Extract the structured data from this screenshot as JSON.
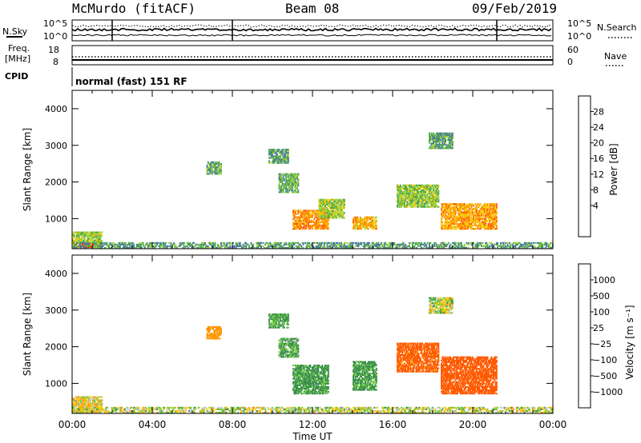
{
  "header": {
    "station": "McMurdo (fitACF)",
    "beam": "Beam 08",
    "date": "09/Feb/2019"
  },
  "strips": {
    "noise": {
      "left_label": "N.Sky",
      "right_label": "N.Search",
      "left_ticks": [
        "10^5",
        "10^0"
      ],
      "right_ticks": [
        "10^5",
        "10^0"
      ]
    },
    "freq": {
      "left_label_1": "Freq.",
      "left_label_2": "[MHz]",
      "right_label": "Nave",
      "left_ticks": [
        "18",
        "8"
      ],
      "right_ticks": [
        "60",
        "0"
      ]
    },
    "cpid": {
      "label": "CPID",
      "text": "normal (fast) 151 RF"
    }
  },
  "chart_data": [
    {
      "type": "heatmap",
      "panel": "power",
      "ylabel": "Slant Range [km]",
      "ylim": [
        180,
        4500
      ],
      "yticks": [
        "1000",
        "2000",
        "3000",
        "4000"
      ],
      "xlim": [
        0,
        24
      ],
      "colorbar": {
        "label": "Power [dB]",
        "ticks": [
          "28",
          "24",
          "20",
          "16",
          "12",
          "8",
          "4"
        ],
        "colors": [
          "#ff0000",
          "#ff5a00",
          "#ff9600",
          "#f5c800",
          "#9ad13a",
          "#4aa84a",
          "#4a78a0",
          "#2a3fc0",
          "#0000ff"
        ]
      },
      "echo_regions": [
        {
          "t": [
            0.0,
            1.5
          ],
          "r": [
            200,
            650
          ],
          "v": 14
        },
        {
          "t": [
            0.3,
            1.1
          ],
          "r": [
            200,
            300
          ],
          "v": 26
        },
        {
          "t": [
            6.7,
            7.4
          ],
          "r": [
            2200,
            2550
          ],
          "v": 10
        },
        {
          "t": [
            9.8,
            10.8
          ],
          "r": [
            2500,
            2900
          ],
          "v": 9
        },
        {
          "t": [
            10.3,
            11.3
          ],
          "r": [
            1700,
            2200
          ],
          "v": 11
        },
        {
          "t": [
            11.0,
            12.8
          ],
          "r": [
            700,
            1200
          ],
          "v": 22
        },
        {
          "t": [
            12.3,
            13.6
          ],
          "r": [
            1000,
            1500
          ],
          "v": 14
        },
        {
          "t": [
            14.0,
            15.2
          ],
          "r": [
            700,
            1050
          ],
          "v": 20
        },
        {
          "t": [
            16.2,
            18.3
          ],
          "r": [
            1300,
            1900
          ],
          "v": 13
        },
        {
          "t": [
            18.4,
            21.2
          ],
          "r": [
            700,
            1400
          ],
          "v": 21
        },
        {
          "t": [
            17.8,
            19.0
          ],
          "r": [
            2900,
            3350
          ],
          "v": 10
        },
        {
          "t": [
            0.0,
            24.0
          ],
          "r": [
            180,
            320
          ],
          "v": 9
        }
      ]
    },
    {
      "type": "heatmap",
      "panel": "velocity",
      "ylabel": "Slant Range [km]",
      "ylim": [
        180,
        4500
      ],
      "yticks": [
        "1000",
        "2000",
        "3000",
        "4000"
      ],
      "xlim": [
        0,
        24
      ],
      "xticks": [
        "00:00",
        "04:00",
        "08:00",
        "12:00",
        "16:00",
        "20:00",
        "00:00"
      ],
      "xlabel": "Time UT",
      "colorbar": {
        "label": "Velocity [m s⁻¹]",
        "ticks": [
          "1000",
          "500",
          "100",
          "25",
          "−25",
          "−100",
          "−500",
          "−1000"
        ],
        "colors": [
          "#1535b0",
          "#2e6ec8",
          "#3a8f4a",
          "#6ccc3a",
          "#c8c8c8",
          "#f5c800",
          "#ff9600",
          "#ff5a00",
          "#ff0000"
        ]
      },
      "echo_regions": [
        {
          "t": [
            0.0,
            1.5
          ],
          "r": [
            200,
            650
          ],
          "v": -50
        },
        {
          "t": [
            6.7,
            7.4
          ],
          "r": [
            2200,
            2550
          ],
          "v": -300
        },
        {
          "t": [
            9.8,
            10.8
          ],
          "r": [
            2500,
            2900
          ],
          "v": 150
        },
        {
          "t": [
            10.3,
            11.3
          ],
          "r": [
            1700,
            2200
          ],
          "v": 120
        },
        {
          "t": [
            11.0,
            12.8
          ],
          "r": [
            700,
            1500
          ],
          "v": 180
        },
        {
          "t": [
            14.0,
            15.2
          ],
          "r": [
            800,
            1600
          ],
          "v": 160
        },
        {
          "t": [
            16.2,
            18.3
          ],
          "r": [
            1300,
            2100
          ],
          "v": -600
        },
        {
          "t": [
            18.4,
            21.2
          ],
          "r": [
            700,
            1700
          ],
          "v": -700
        },
        {
          "t": [
            17.8,
            19.0
          ],
          "r": [
            2900,
            3350
          ],
          "v": 10
        },
        {
          "t": [
            0.0,
            24.0
          ],
          "r": [
            180,
            320
          ],
          "v": 10
        }
      ]
    }
  ]
}
